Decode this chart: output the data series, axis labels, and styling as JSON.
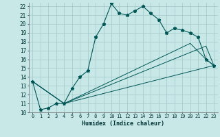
{
  "xlabel": "Humidex (Indice chaleur)",
  "bg_color": "#c8e8e8",
  "grid_color": "#a8cccc",
  "line_color": "#005555",
  "xlim": [
    -0.5,
    23.5
  ],
  "ylim": [
    10,
    22.4
  ],
  "xticks": [
    0,
    1,
    2,
    3,
    4,
    5,
    6,
    7,
    8,
    9,
    10,
    11,
    12,
    13,
    14,
    15,
    16,
    17,
    18,
    19,
    20,
    21,
    22,
    23
  ],
  "yticks": [
    10,
    11,
    12,
    13,
    14,
    15,
    16,
    17,
    18,
    19,
    20,
    21,
    22
  ],
  "series1_x": [
    0,
    1,
    2,
    3,
    4,
    5,
    6,
    7,
    8,
    9,
    10,
    11,
    12,
    13,
    14,
    15,
    16,
    17,
    18,
    19,
    20,
    21,
    22,
    23
  ],
  "series1_y": [
    13.5,
    10.3,
    10.5,
    11.0,
    11.0,
    12.7,
    14.0,
    14.7,
    18.5,
    20.0,
    22.3,
    21.2,
    21.0,
    21.5,
    22.0,
    21.2,
    20.5,
    19.0,
    19.5,
    19.3,
    19.0,
    18.5,
    16.0,
    15.3
  ],
  "series2_x": [
    0,
    4,
    20,
    22,
    23
  ],
  "series2_y": [
    13.5,
    11.0,
    17.8,
    16.0,
    15.3
  ],
  "series3_x": [
    0,
    4,
    22,
    23
  ],
  "series3_y": [
    13.5,
    11.0,
    17.5,
    15.3
  ],
  "series4_x": [
    0,
    4,
    23
  ],
  "series4_y": [
    13.5,
    11.0,
    15.3
  ]
}
